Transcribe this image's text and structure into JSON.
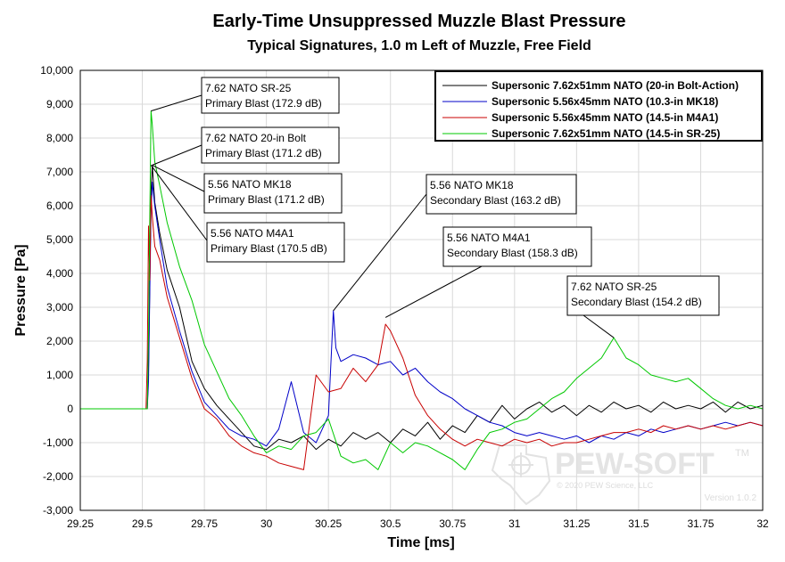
{
  "chart_data": {
    "type": "line",
    "title": "Early-Time Unsuppressed Muzzle Blast Pressure",
    "subtitle": "Typical Signatures, 1.0 m Left of Muzzle, Free Field",
    "xlabel": "Time [ms]",
    "ylabel": "Pressure [Pa]",
    "xlim": [
      29.25,
      32
    ],
    "ylim": [
      -3000,
      10000
    ],
    "xticks": [
      "29.25",
      "29.5",
      "29.75",
      "30",
      "30.25",
      "30.5",
      "30.75",
      "31",
      "31.25",
      "31.5",
      "31.75",
      "32"
    ],
    "yticks": [
      "-3,000",
      "-2,000",
      "-1,000",
      "0",
      "1,000",
      "2,000",
      "3,000",
      "4,000",
      "5,000",
      "6,000",
      "7,000",
      "8,000",
      "9,000",
      "10,000"
    ],
    "legend_position": "top-right",
    "series": [
      {
        "name": "Supersonic 7.62x51mm NATO (20-in Bolt-Action)",
        "color": "#000000",
        "x": [
          29.25,
          29.52,
          29.525,
          29.53,
          29.535,
          29.54,
          29.55,
          29.57,
          29.6,
          29.65,
          29.7,
          29.75,
          29.8,
          29.85,
          29.9,
          29.95,
          30.0,
          30.05,
          30.1,
          30.15,
          30.2,
          30.25,
          30.3,
          30.35,
          30.4,
          30.45,
          30.5,
          30.55,
          30.6,
          30.65,
          30.7,
          30.75,
          30.8,
          30.85,
          30.9,
          30.95,
          31.0,
          31.05,
          31.1,
          31.15,
          31.2,
          31.25,
          31.3,
          31.35,
          31.4,
          31.45,
          31.5,
          31.55,
          31.6,
          31.65,
          31.7,
          31.75,
          31.8,
          31.85,
          31.9,
          31.95,
          32.0
        ],
        "values": [
          0,
          0,
          1200,
          3600,
          6400,
          7200,
          6100,
          5200,
          4100,
          3000,
          1400,
          600,
          100,
          -300,
          -700,
          -1100,
          -1200,
          -900,
          -1000,
          -800,
          -1200,
          -900,
          -1100,
          -700,
          -900,
          -700,
          -1000,
          -600,
          -800,
          -400,
          -900,
          -500,
          -700,
          -200,
          -400,
          100,
          -300,
          0,
          200,
          -100,
          100,
          -200,
          100,
          -100,
          200,
          0,
          100,
          -100,
          200,
          0,
          100,
          0,
          200,
          -100,
          200,
          0,
          100
        ]
      },
      {
        "name": "Supersonic 5.56x45mm NATO (10.3-in MK18)",
        "color": "#0000c8",
        "x": [
          29.25,
          29.52,
          29.525,
          29.53,
          29.535,
          29.54,
          29.55,
          29.57,
          29.6,
          29.65,
          29.7,
          29.75,
          29.8,
          29.85,
          29.9,
          29.95,
          30.0,
          30.05,
          30.1,
          30.15,
          30.2,
          30.25,
          30.27,
          30.28,
          30.3,
          30.35,
          30.4,
          30.45,
          30.5,
          30.55,
          30.6,
          30.65,
          30.7,
          30.75,
          30.8,
          30.85,
          30.9,
          30.95,
          31.0,
          31.05,
          31.1,
          31.15,
          31.2,
          31.25,
          31.3,
          31.35,
          31.4,
          31.45,
          31.5,
          31.55,
          31.6,
          31.65,
          31.7,
          31.75,
          31.8,
          31.85,
          31.9,
          31.95,
          32.0
        ],
        "values": [
          0,
          0,
          800,
          3400,
          5800,
          6700,
          6000,
          5000,
          3600,
          2300,
          1100,
          200,
          -200,
          -600,
          -800,
          -900,
          -1100,
          -600,
          800,
          -700,
          -1000,
          -200,
          2900,
          1800,
          1400,
          1600,
          1500,
          1300,
          1400,
          1000,
          1200,
          800,
          500,
          300,
          0,
          -200,
          -400,
          -500,
          -700,
          -800,
          -700,
          -800,
          -900,
          -800,
          -1000,
          -800,
          -900,
          -700,
          -800,
          -600,
          -700,
          -600,
          -500,
          -600,
          -500,
          -400,
          -500,
          -400,
          -500
        ]
      },
      {
        "name": "Supersonic 5.56x45mm NATO (14.5-in M4A1)",
        "color": "#c80000",
        "x": [
          29.25,
          29.515,
          29.52,
          29.525,
          29.53,
          29.535,
          29.54,
          29.55,
          29.57,
          29.6,
          29.65,
          29.7,
          29.75,
          29.8,
          29.85,
          29.9,
          29.95,
          30.0,
          30.05,
          30.1,
          30.15,
          30.2,
          30.25,
          30.3,
          30.35,
          30.4,
          30.45,
          30.48,
          30.5,
          30.55,
          30.6,
          30.65,
          30.7,
          30.75,
          30.8,
          30.85,
          30.9,
          30.95,
          31.0,
          31.05,
          31.1,
          31.15,
          31.2,
          31.25,
          31.3,
          31.35,
          31.4,
          31.45,
          31.5,
          31.55,
          31.6,
          31.65,
          31.7,
          31.75,
          31.8,
          31.85,
          31.9,
          31.95,
          32.0
        ],
        "values": [
          0,
          0,
          1400,
          5400,
          3800,
          6300,
          5700,
          4800,
          4400,
          3300,
          2100,
          900,
          0,
          -300,
          -800,
          -1100,
          -1300,
          -1400,
          -1600,
          -1700,
          -1800,
          1000,
          500,
          600,
          1200,
          800,
          1300,
          2500,
          2300,
          1500,
          400,
          -200,
          -600,
          -900,
          -1100,
          -900,
          -1000,
          -1100,
          -900,
          -1000,
          -900,
          -1100,
          -1000,
          -1000,
          -900,
          -800,
          -700,
          -700,
          -600,
          -700,
          -500,
          -600,
          -500,
          -600,
          -500,
          -600,
          -500,
          -400,
          -500
        ]
      },
      {
        "name": "Supersonic 7.62x51mm NATO (14.5-in SR-25)",
        "color": "#00c800",
        "x": [
          29.25,
          29.52,
          29.525,
          29.53,
          29.535,
          29.54,
          29.55,
          29.57,
          29.6,
          29.65,
          29.7,
          29.75,
          29.8,
          29.85,
          29.9,
          29.95,
          30.0,
          30.05,
          30.1,
          30.15,
          30.2,
          30.25,
          30.3,
          30.35,
          30.4,
          30.45,
          30.5,
          30.55,
          30.6,
          30.65,
          30.7,
          30.75,
          30.8,
          30.85,
          30.9,
          30.95,
          31.0,
          31.05,
          31.1,
          31.15,
          31.2,
          31.25,
          31.3,
          31.35,
          31.4,
          31.45,
          31.5,
          31.55,
          31.6,
          31.65,
          31.7,
          31.75,
          31.8,
          31.85,
          31.9,
          31.95,
          32.0
        ],
        "values": [
          0,
          0,
          2200,
          5600,
          8800,
          8400,
          7300,
          6600,
          5500,
          4200,
          3200,
          1900,
          1100,
          300,
          -200,
          -800,
          -1300,
          -1100,
          -1200,
          -800,
          -700,
          -300,
          -1400,
          -1600,
          -1500,
          -1800,
          -1000,
          -1300,
          -1000,
          -1100,
          -1300,
          -1500,
          -1800,
          -1200,
          -700,
          -600,
          -400,
          -300,
          0,
          300,
          500,
          900,
          1200,
          1500,
          2100,
          1500,
          1300,
          1000,
          900,
          800,
          900,
          600,
          300,
          100,
          0,
          100,
          0
        ]
      }
    ],
    "annotations": [
      {
        "line1": "7.62 NATO SR-25",
        "line2": "Primary Blast (172.9 dB)",
        "x": 29.535,
        "y": 8800
      },
      {
        "line1": "7.62 NATO 20-in Bolt",
        "line2": "Primary Blast (171.2 dB)",
        "x": 29.54,
        "y": 7200
      },
      {
        "line1": "5.56 NATO MK18",
        "line2": "Primary Blast (171.2 dB)",
        "x": 29.54,
        "y": 7200
      },
      {
        "line1": "5.56 NATO M4A1",
        "line2": "Primary Blast (170.5 dB)",
        "x": 29.535,
        "y": 7200
      },
      {
        "line1": "5.56 NATO MK18",
        "line2": "Secondary Blast (163.2 dB)",
        "x": 30.27,
        "y": 2900
      },
      {
        "line1": "5.56 NATO M4A1",
        "line2": "Secondary Blast (158.3 dB)",
        "x": 30.48,
        "y": 2700
      },
      {
        "line1": "7.62 NATO SR-25",
        "line2": "Secondary Blast (154.2 dB)",
        "x": 31.4,
        "y": 2100
      }
    ]
  },
  "watermark": {
    "logo": "PEW-SOFT",
    "trademark": "TM",
    "copyright": "© 2020 PEW Science, LLC",
    "version": "Version 1.0.2"
  }
}
